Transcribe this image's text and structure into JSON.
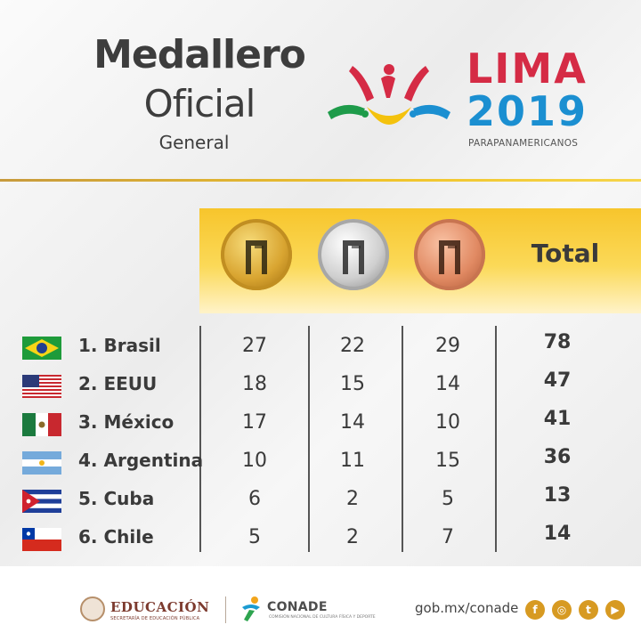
{
  "header": {
    "title_line1": "Medallero",
    "title_line2": "Oficial",
    "subtitle": "General",
    "brand_line1": "LIMA",
    "brand_line2": "2019",
    "brand_caption": "PARAPANAMERICANOS"
  },
  "table": {
    "columns": [
      {
        "key": "gold",
        "icon": "gold-medal-icon"
      },
      {
        "key": "silver",
        "icon": "silver-medal-icon"
      },
      {
        "key": "bronze",
        "icon": "bronze-medal-icon"
      },
      {
        "key": "total",
        "label": "Total"
      }
    ],
    "rows": [
      {
        "rank_name": "1. Brasil",
        "flag": "brazil-flag-icon",
        "gold": "27",
        "silver": "22",
        "bronze": "29",
        "total": "78"
      },
      {
        "rank_name": "2. EEUU",
        "flag": "usa-flag-icon",
        "gold": "18",
        "silver": "15",
        "bronze": "14",
        "total": "47"
      },
      {
        "rank_name": "3. México",
        "flag": "mexico-flag-icon",
        "gold": "17",
        "silver": "14",
        "bronze": "10",
        "total": "41"
      },
      {
        "rank_name": "4. Argentina",
        "flag": "argentina-flag-icon",
        "gold": "10",
        "silver": "11",
        "bronze": "15",
        "total": "36"
      },
      {
        "rank_name": "5. Cuba",
        "flag": "cuba-flag-icon",
        "gold": "6",
        "silver": "2",
        "bronze": "5",
        "total": "13"
      },
      {
        "rank_name": "6. Chile",
        "flag": "chile-flag-icon",
        "gold": "5",
        "silver": "2",
        "bronze": "7",
        "total": "14"
      }
    ]
  },
  "footer": {
    "edu_label": "EDUCACIÓN",
    "edu_sub": "SECRETARÍA DE EDUCACIÓN PÚBLICA",
    "conade_label": "CONADE",
    "conade_sub": "COMISIÓN NACIONAL DE CULTURA FÍSICA Y DEPORTE",
    "url": "gob.mx/conade",
    "social": [
      "facebook-icon",
      "instagram-icon",
      "twitter-icon",
      "youtube-icon"
    ]
  },
  "colors": {
    "lima_red": "#d52b45",
    "lima_blue": "#1b8fd1",
    "band_yellow": "#f7c52c",
    "social_gold": "#d79a22"
  }
}
